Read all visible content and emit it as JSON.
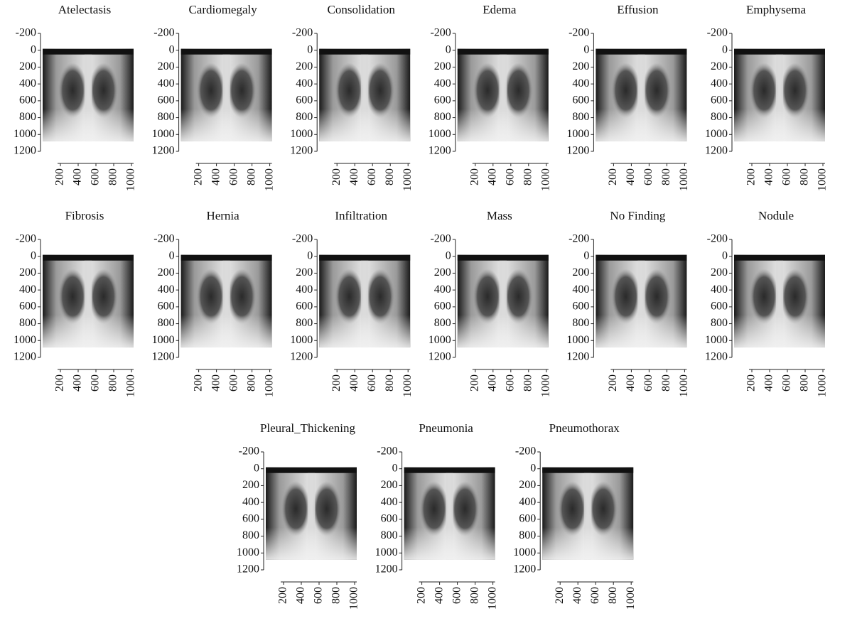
{
  "panels": [
    {
      "title": "Atelectasis"
    },
    {
      "title": "Cardiomegaly"
    },
    {
      "title": "Consolidation"
    },
    {
      "title": "Edema"
    },
    {
      "title": "Effusion"
    },
    {
      "title": "Emphysema"
    },
    {
      "title": "Fibrosis"
    },
    {
      "title": "Hernia"
    },
    {
      "title": "Infiltration"
    },
    {
      "title": "Mass"
    },
    {
      "title": "No Finding"
    },
    {
      "title": "Nodule"
    },
    {
      "title": "Pleural_Thickening"
    },
    {
      "title": "Pneumonia"
    },
    {
      "title": "Pneumothorax"
    }
  ],
  "axes": {
    "ylim": [
      -200,
      1200
    ],
    "yticks": [
      -200,
      0,
      200,
      400,
      600,
      800,
      1000,
      1200
    ],
    "xlim": [
      0,
      1024
    ],
    "xticks": [
      200,
      400,
      600,
      800,
      1000
    ]
  }
}
